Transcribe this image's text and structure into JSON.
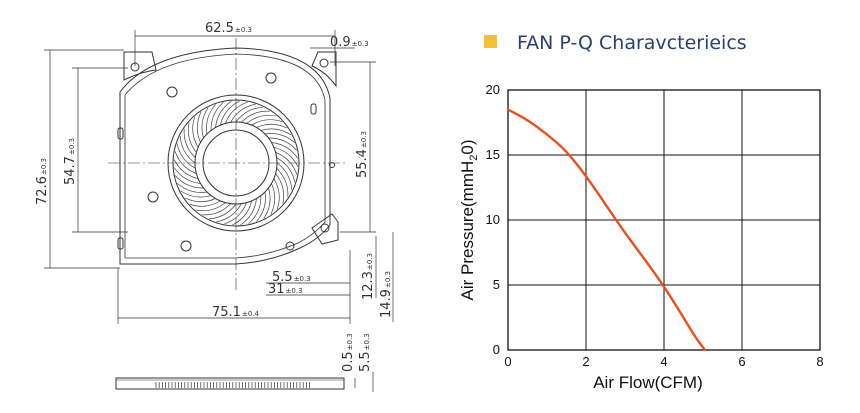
{
  "heading": {
    "title": "FAN P-Q  Charavcterieics",
    "marker_color": "#f2c230",
    "title_color": "#2b3f73"
  },
  "dimensions": {
    "top_width": {
      "value": "62.5",
      "tol": "±0.3"
    },
    "tab_offset": {
      "value": "0.9",
      "tol": "±0.3"
    },
    "overall_height": {
      "value": "72.6",
      "tol": "±0.3"
    },
    "inner_height": {
      "value": "54.7",
      "tol": "±0.3"
    },
    "right_height": {
      "value": "55.4",
      "tol": "±0.3"
    },
    "outlet_a": {
      "value": "5.5",
      "tol": "±0.3"
    },
    "outlet_b": {
      "value": "31",
      "tol": "±0.3"
    },
    "overall_width": {
      "value": "75.1",
      "tol": "±0.4"
    },
    "outlet_h1": {
      "value": "12.3",
      "tol": "±0.3"
    },
    "outlet_h2": {
      "value": "14.9",
      "tol": "±0.3"
    },
    "plate_thickness": {
      "value": "0.5",
      "tol": "±0.3"
    },
    "total_thickness": {
      "value": "5.5",
      "tol": "±0.3"
    }
  },
  "chart_data": {
    "type": "line",
    "title": "FAN P-Q  Charavcterieics",
    "xlabel": "Air Flow(CFM)",
    "ylabel_main": "Air Pressure(mmH",
    "ylabel_sub": "2",
    "ylabel_tail": "0)",
    "xlim": [
      0,
      8
    ],
    "ylim": [
      0,
      20
    ],
    "xticks": [
      "0",
      "2",
      "4",
      "6",
      "8"
    ],
    "yticks": [
      "0",
      "5",
      "10",
      "15",
      "20"
    ],
    "grid": true,
    "line_color": "#e8501e",
    "series": [
      {
        "x": [
          0,
          0.5,
          1.0,
          1.5,
          2.0,
          2.5,
          3.0,
          3.5,
          4.0,
          4.5,
          4.8,
          5.05
        ],
        "y": [
          18.5,
          17.7,
          16.6,
          15.3,
          13.4,
          11.2,
          9.0,
          7.0,
          4.9,
          2.5,
          1.0,
          0.0
        ]
      }
    ]
  }
}
